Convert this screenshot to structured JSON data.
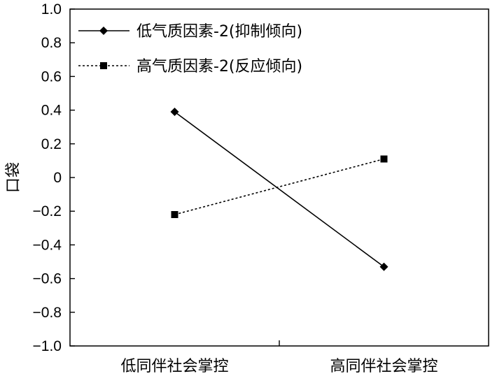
{
  "chart_data": {
    "type": "line",
    "title": "",
    "xlabel": "",
    "ylabel": "口袋",
    "categories": [
      "低同伴社会掌控",
      "高同伴社会掌控"
    ],
    "ylim": [
      -1.0,
      1.0
    ],
    "yticks": [
      "1.0",
      "0.8",
      "0.6",
      "0.4",
      "0.2",
      "0",
      "−0.2",
      "−0.4",
      "−0.6",
      "−0.8",
      "−1.0"
    ],
    "ytick_values": [
      1.0,
      0.8,
      0.6,
      0.4,
      0.2,
      0,
      -0.2,
      -0.4,
      -0.6,
      -0.8,
      -1.0
    ],
    "grid": false,
    "legend_position": "top-left",
    "series": [
      {
        "name": "低气质因素-2(抑制倾向)",
        "values": [
          0.39,
          -0.53
        ],
        "line_style": "solid",
        "marker": "diamond",
        "color": "#000000"
      },
      {
        "name": "高气质因素-2(反应倾向)",
        "values": [
          -0.22,
          0.11
        ],
        "line_style": "dotted",
        "marker": "square",
        "color": "#000000"
      }
    ]
  }
}
